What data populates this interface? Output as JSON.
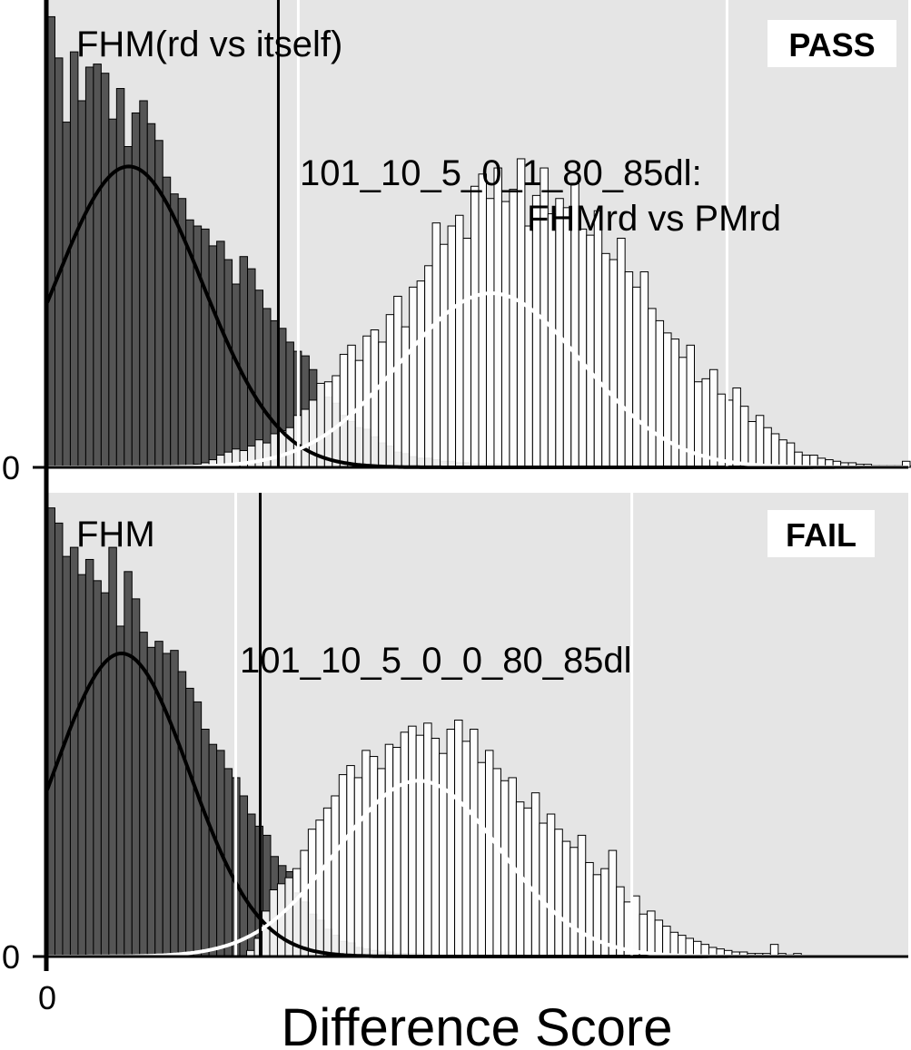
{
  "chart_data": [
    {
      "type": "histogram",
      "label_left": "FHM(rd vs itself)",
      "label_mid_line1": "101_10_5_0_1_80_85dl:",
      "label_mid_line2": "FHMrd vs PMrd",
      "badge": "PASS",
      "y_tick": "0",
      "threshold": 255,
      "bounds_low": 277,
      "bounds_high": 750,
      "bin_width": 8.5,
      "xlim": [
        0,
        950
      ],
      "ylim": [
        0,
        300
      ],
      "series": [
        {
          "color": "#555555",
          "start": 0,
          "values": [
            295,
            268,
            226,
            272,
            240,
            262,
            264,
            258,
            228,
            248,
            210,
            232,
            240,
            225,
            214,
            190,
            179,
            176,
            162,
            158,
            156,
            145,
            148,
            136,
            120,
            138,
            130,
            116,
            104,
            96,
            91,
            82,
            76,
            73,
            64,
            54,
            46,
            42,
            34,
            30,
            26,
            25,
            20,
            16,
            14,
            10,
            9,
            7,
            6,
            6,
            5,
            4,
            4,
            3,
            3,
            2,
            2,
            2,
            2,
            1,
            1,
            1,
            1,
            1,
            1,
            1,
            1,
            1,
            1,
            1,
            1,
            1,
            1,
            1,
            1,
            1,
            1,
            1,
            1,
            1,
            1,
            1
          ]
        },
        {
          "color": "#ffffff",
          "start": 153,
          "values": [
            1,
            2,
            3,
            5,
            8,
            10,
            12,
            11,
            14,
            18,
            16,
            22,
            24,
            26,
            34,
            38,
            44,
            55,
            56,
            60,
            74,
            80,
            70,
            86,
            90,
            82,
            100,
            112,
            92,
            118,
            122,
            132,
            160,
            146,
            158,
            165,
            150,
            184,
            192,
            176,
            196,
            174,
            182,
            202,
            158,
            178,
            196,
            166,
            176,
            170,
            186,
            156,
            152,
            168,
            140,
            136,
            150,
            128,
            118,
            128,
            104,
            96,
            88,
            84,
            72,
            80,
            56,
            58,
            64,
            48,
            44,
            52,
            40,
            30,
            34,
            26,
            22,
            18,
            16,
            10,
            8,
            8,
            6,
            5,
            4,
            3,
            3,
            2,
            2,
            1,
            1,
            1,
            1,
            4,
            1,
            1,
            1
          ]
        }
      ],
      "fits": [
        {
          "color": "#000000",
          "mu": 90,
          "sigma": 82,
          "peak": 197
        },
        {
          "color": "#ffffff",
          "mu": 490,
          "sigma": 100,
          "peak": 114
        }
      ]
    },
    {
      "type": "histogram",
      "label_left": "FHM",
      "label_mid_line1": "101_10_5_0_0_80_85dl",
      "label_mid_line2": "",
      "badge": "FAIL",
      "y_tick": "0",
      "threshold": 235,
      "bounds_low": 208,
      "bounds_high": 645,
      "bin_width": 8.5,
      "xlim": [
        0,
        950
      ],
      "ylim": [
        0,
        300
      ],
      "series": [
        {
          "color": "#555555",
          "start": 0,
          "values": [
            296,
            286,
            264,
            270,
            252,
            262,
            248,
            240,
            270,
            218,
            254,
            236,
            214,
            204,
            208,
            200,
            202,
            188,
            177,
            168,
            150,
            140,
            136,
            124,
            118,
            106,
            94,
            86,
            80,
            66,
            60,
            56,
            42,
            36,
            28,
            24,
            18,
            14,
            10,
            9,
            6,
            5,
            4,
            3,
            3,
            2,
            2,
            2,
            2,
            1,
            1,
            1,
            1,
            1,
            1,
            1,
            1,
            1,
            1,
            1,
            1,
            1
          ]
        },
        {
          "color": "#ffffff",
          "start": 220,
          "values": [
            4,
            12,
            30,
            44,
            48,
            52,
            58,
            70,
            84,
            90,
            98,
            106,
            120,
            126,
            118,
            136,
            132,
            124,
            140,
            138,
            148,
            152,
            146,
            154,
            144,
            134,
            150,
            156,
            142,
            150,
            128,
            136,
            124,
            116,
            118,
            102,
            98,
            108,
            88,
            94,
            84,
            76,
            72,
            80,
            62,
            54,
            58,
            70,
            46,
            36,
            40,
            28,
            30,
            24,
            20,
            16,
            14,
            12,
            10,
            8,
            6,
            5,
            4,
            3,
            3,
            2,
            2,
            2,
            8,
            2,
            1,
            2
          ]
        }
      ],
      "fits": [
        {
          "color": "#000000",
          "mu": 82,
          "sigma": 75,
          "peak": 200
        },
        {
          "color": "#ffffff",
          "mu": 410,
          "sigma": 90,
          "peak": 116
        }
      ]
    }
  ],
  "xaxis": {
    "tick": "0",
    "title": "Difference Score"
  }
}
